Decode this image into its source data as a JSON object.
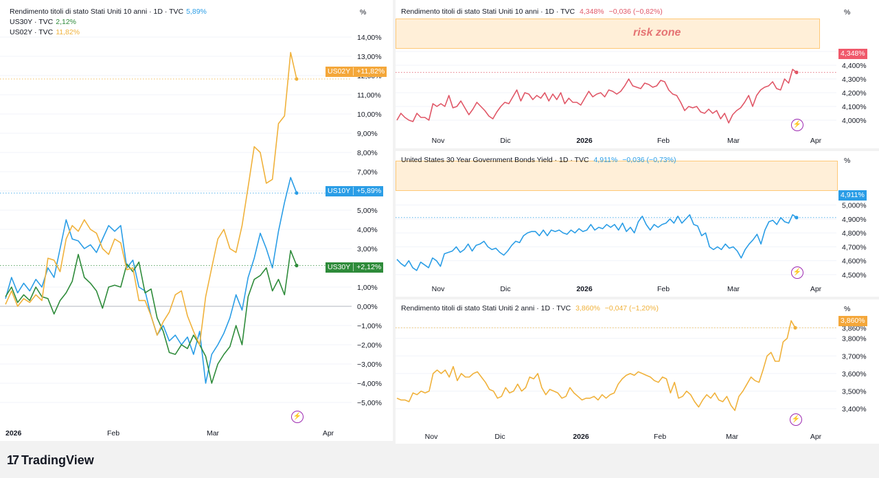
{
  "left_panel": {
    "legend": [
      {
        "label": "Rendimento titoli di stato Stati Uniti 10 anni · 1D · TVC",
        "value": "5,89%",
        "color": "#2a9de6"
      },
      {
        "label": "US30Y · TVC",
        "value": "2,12%",
        "color": "#2e8b3a"
      },
      {
        "label": "US02Y · TVC",
        "value": "11,82%",
        "color": "#f0b13a"
      }
    ],
    "unit": "%",
    "badges": [
      {
        "symbol": "US02Y",
        "value": "+11,82%",
        "color": "#f4a73a"
      },
      {
        "symbol": "US10Y",
        "value": "+5,89%",
        "color": "#2a9de6"
      },
      {
        "symbol": "US30Y",
        "value": "+2,12%",
        "color": "#2e8b3a"
      }
    ]
  },
  "top_right_panel": {
    "legend": {
      "label": "Rendimento titoli di stato Stati Uniti 10 anni · 1D · TVC",
      "value": "4,348%",
      "change": "−0,036 (−0,82%)",
      "color": "#e05666"
    },
    "unit": "%",
    "zone_label": "risk zone",
    "badge": "4,348%",
    "badge_color": "#f0596b"
  },
  "mid_right_panel": {
    "legend": {
      "label": "United States 30 Year Government Bonds Yield · 1D · TVC",
      "value": "4,911%",
      "change": "−0,036 (−0,73%)",
      "color": "#2a9de6"
    },
    "unit": "%",
    "badge": "4,911%",
    "badge_color": "#2a9de6"
  },
  "bottom_right_panel": {
    "legend": {
      "label": "Rendimento titoli di stato Stati Uniti 2 anni · 1D · TVC",
      "value": "3,860%",
      "change": "−0,047 (−1,20%)",
      "color": "#f0b13a"
    },
    "unit": "%",
    "badge": "3,860%",
    "badge_color": "#f4a73a"
  },
  "brand": "TradingView",
  "chart_data": [
    {
      "type": "line",
      "ylabel": "%",
      "ylim": [
        -5.5,
        14.5
      ],
      "y_ticks": [
        "14,00%",
        "13,00%",
        "12,00%",
        "11,00%",
        "10,00%",
        "9,00%",
        "8,00%",
        "7,00%",
        "6,00%",
        "5,00%",
        "4,00%",
        "3,00%",
        "2,00%",
        "1,00%",
        "0,00%",
        "−1,00%",
        "−2,00%",
        "−3,00%",
        "−4,00%",
        "−5,00%"
      ],
      "x_ticks": [
        "2026",
        "Feb",
        "Mar",
        "Apr"
      ],
      "series": [
        {
          "name": "US10Y",
          "color": "#2a9de6",
          "values": [
            0.4,
            1.5,
            0.7,
            1.2,
            0.8,
            1.4,
            1.0,
            2.0,
            1.5,
            3.0,
            4.5,
            3.5,
            3.4,
            3.0,
            3.2,
            2.8,
            3.5,
            4.2,
            3.9,
            4.2,
            2.0,
            2.4,
            1.0,
            0.8,
            -0.5,
            -1.5,
            -1.0,
            -1.8,
            -1.5,
            -2.0,
            -1.6,
            -2.5,
            -1.3,
            -4.0,
            -2.5,
            -2.0,
            -1.4,
            -0.6,
            0.6,
            -0.2,
            1.5,
            2.5,
            3.8,
            3.0,
            2.0,
            3.9,
            5.4,
            6.7,
            5.89
          ]
        },
        {
          "name": "US30Y",
          "color": "#2e8b3a",
          "values": [
            0.5,
            1.0,
            0.2,
            0.6,
            0.3,
            1.0,
            0.5,
            0.4,
            -0.4,
            0.3,
            0.7,
            1.3,
            2.7,
            1.5,
            1.2,
            0.8,
            -0.1,
            1.0,
            1.1,
            1.0,
            2.2,
            1.8,
            2.3,
            0.7,
            0.9,
            -0.6,
            -1.3,
            -2.4,
            -2.5,
            -2.0,
            -2.2,
            -1.5,
            -2.0,
            -2.6,
            -4.0,
            -3.0,
            -2.5,
            -2.1,
            -1.0,
            -2.0,
            0.5,
            1.4,
            1.6,
            2.0,
            0.8,
            1.4,
            0.6,
            2.9,
            2.12
          ]
        },
        {
          "name": "US02Y",
          "color": "#f0b13a",
          "values": [
            0.1,
            0.8,
            0.0,
            0.4,
            0.2,
            0.6,
            0.3,
            2.5,
            2.4,
            1.8,
            3.5,
            4.2,
            3.9,
            4.5,
            4.0,
            3.8,
            3.0,
            2.7,
            3.5,
            3.3,
            1.9,
            2.0,
            0.3,
            0.3,
            -0.5,
            -1.5,
            -0.8,
            -0.3,
            0.6,
            0.8,
            -0.5,
            -1.3,
            -2.0,
            0.5,
            2.0,
            3.5,
            4.0,
            3.0,
            2.8,
            4.2,
            6.2,
            8.3,
            8.0,
            6.4,
            6.6,
            9.5,
            9.9,
            13.2,
            11.82
          ]
        }
      ]
    },
    {
      "type": "line",
      "ylabel": "%",
      "ylim": [
        3.925,
        4.7
      ],
      "y_ticks": [
        "4,500%",
        "4,400%",
        "4,300%",
        "4,200%",
        "4,100%",
        "4,000%"
      ],
      "x_ticks": [
        "Nov",
        "Dic",
        "2026",
        "Feb",
        "Mar",
        "Apr"
      ],
      "series": [
        {
          "name": "",
          "color": "#e05666",
          "values": [
            4.0,
            4.05,
            4.02,
            4.0,
            3.99,
            4.05,
            4.02,
            4.02,
            4.0,
            4.12,
            4.1,
            4.12,
            4.1,
            4.18,
            4.09,
            4.1,
            4.14,
            4.09,
            4.04,
            4.08,
            4.13,
            4.1,
            4.07,
            4.03,
            4.01,
            4.06,
            4.1,
            4.13,
            4.12,
            4.17,
            4.22,
            4.14,
            4.2,
            4.19,
            4.15,
            4.18,
            4.16,
            4.2,
            4.14,
            4.19,
            4.15,
            4.2,
            4.12,
            4.16,
            4.13,
            4.13,
            4.11,
            4.16,
            4.21,
            4.17,
            4.19,
            4.2,
            4.17,
            4.22,
            4.21,
            4.19,
            4.21,
            4.25,
            4.3,
            4.25,
            4.24,
            4.23,
            4.27,
            4.26,
            4.24,
            4.25,
            4.29,
            4.28,
            4.22,
            4.19,
            4.18,
            4.13,
            4.07,
            4.1,
            4.09,
            4.1,
            4.06,
            4.05,
            4.08,
            4.05,
            4.07,
            4.01,
            4.05,
            3.98,
            4.04,
            4.07,
            4.09,
            4.13,
            4.18,
            4.1,
            4.18,
            4.22,
            4.24,
            4.25,
            4.28,
            4.23,
            4.22,
            4.3,
            4.27,
            4.37,
            4.348
          ]
        }
      ]
    },
    {
      "type": "line",
      "ylabel": "%",
      "ylim": [
        4.47,
        5.2
      ],
      "y_ticks": [
        "5,000%",
        "4,900%",
        "4,800%",
        "4,700%",
        "4,600%",
        "4,500%"
      ],
      "x_ticks": [
        "Nov",
        "Dic",
        "2026",
        "Feb",
        "Mar",
        "Apr"
      ],
      "series": [
        {
          "name": "",
          "color": "#2a9de6",
          "values": [
            4.61,
            4.58,
            4.56,
            4.6,
            4.55,
            4.53,
            4.59,
            4.57,
            4.55,
            4.62,
            4.6,
            4.56,
            4.65,
            4.66,
            4.67,
            4.7,
            4.66,
            4.68,
            4.72,
            4.67,
            4.71,
            4.72,
            4.74,
            4.7,
            4.68,
            4.69,
            4.66,
            4.64,
            4.67,
            4.71,
            4.74,
            4.73,
            4.78,
            4.8,
            4.81,
            4.81,
            4.78,
            4.82,
            4.78,
            4.82,
            4.81,
            4.82,
            4.8,
            4.79,
            4.82,
            4.8,
            4.83,
            4.81,
            4.82,
            4.86,
            4.82,
            4.84,
            4.83,
            4.86,
            4.84,
            4.86,
            4.82,
            4.87,
            4.81,
            4.84,
            4.8,
            4.88,
            4.92,
            4.86,
            4.82,
            4.86,
            4.84,
            4.86,
            4.87,
            4.9,
            4.87,
            4.92,
            4.87,
            4.9,
            4.93,
            4.86,
            4.85,
            4.78,
            4.8,
            4.7,
            4.68,
            4.7,
            4.68,
            4.72,
            4.69,
            4.7,
            4.67,
            4.62,
            4.68,
            4.72,
            4.75,
            4.79,
            4.72,
            4.82,
            4.88,
            4.89,
            4.86,
            4.91,
            4.88,
            4.87,
            4.93,
            4.91
          ]
        }
      ]
    },
    {
      "type": "line",
      "ylabel": "%",
      "ylim": [
        3.35,
        3.9
      ],
      "y_ticks": [
        "3,860%",
        "3,800%",
        "3,700%",
        "3,600%",
        "3,500%",
        "3,400%"
      ],
      "x_ticks": [
        "Nov",
        "Dic",
        "2026",
        "Feb",
        "Mar",
        "Apr"
      ],
      "series": [
        {
          "name": "",
          "color": "#f0b13a",
          "values": [
            3.46,
            3.45,
            3.45,
            3.44,
            3.49,
            3.48,
            3.5,
            3.49,
            3.5,
            3.6,
            3.62,
            3.6,
            3.62,
            3.58,
            3.64,
            3.56,
            3.6,
            3.58,
            3.58,
            3.6,
            3.61,
            3.58,
            3.55,
            3.51,
            3.5,
            3.46,
            3.47,
            3.52,
            3.49,
            3.5,
            3.54,
            3.5,
            3.52,
            3.58,
            3.57,
            3.6,
            3.52,
            3.48,
            3.51,
            3.5,
            3.49,
            3.46,
            3.47,
            3.52,
            3.49,
            3.47,
            3.45,
            3.46,
            3.46,
            3.47,
            3.45,
            3.48,
            3.46,
            3.48,
            3.49,
            3.54,
            3.57,
            3.59,
            3.6,
            3.59,
            3.61,
            3.6,
            3.59,
            3.58,
            3.56,
            3.55,
            3.58,
            3.57,
            3.49,
            3.55,
            3.46,
            3.47,
            3.5,
            3.48,
            3.44,
            3.41,
            3.45,
            3.48,
            3.46,
            3.49,
            3.45,
            3.44,
            3.47,
            3.42,
            3.39,
            3.47,
            3.5,
            3.54,
            3.58,
            3.56,
            3.55,
            3.62,
            3.7,
            3.72,
            3.67,
            3.67,
            3.78,
            3.8,
            3.9,
            3.86
          ]
        }
      ]
    }
  ]
}
